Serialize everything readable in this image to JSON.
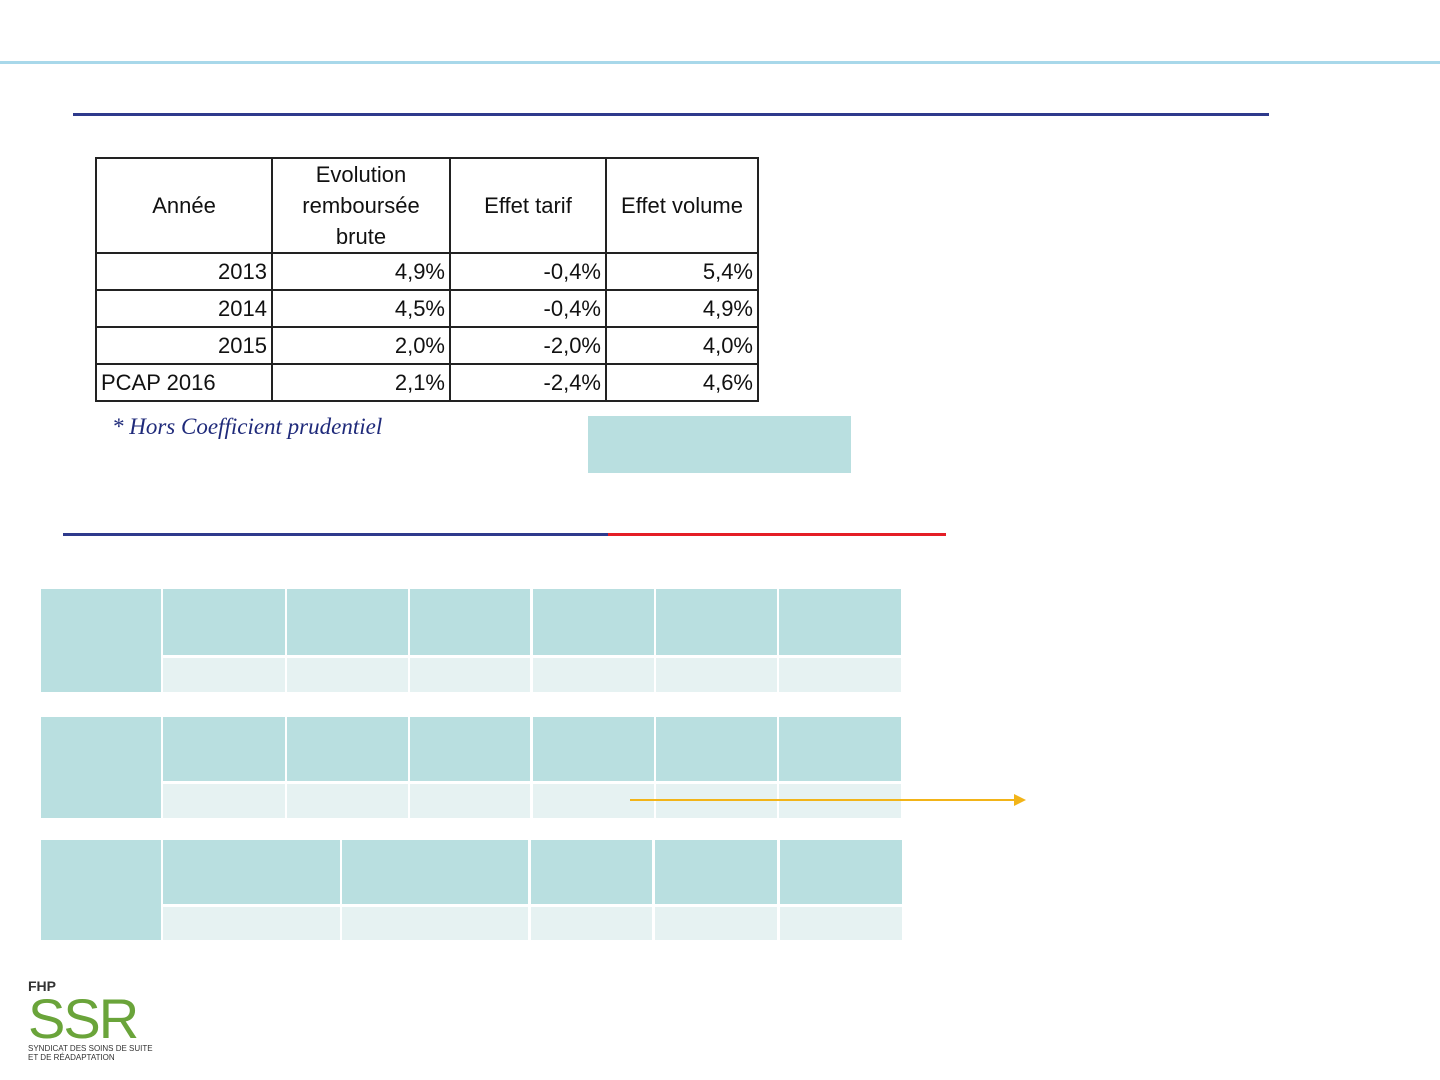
{
  "table": {
    "header": [
      "Année",
      "Evolution remboursée brute",
      "Effet tarif",
      "Effet volume"
    ],
    "rows": [
      [
        "2013",
        "4,9%",
        "-0,4%",
        "5,4%"
      ],
      [
        "2014",
        "4,5%",
        "-0,4%",
        "4,9%"
      ],
      [
        "2015",
        "2,0%",
        "-2,0%",
        "4,0%"
      ],
      [
        "PCAP 2016",
        "2,1%",
        "-2,4%",
        "4,6%"
      ]
    ],
    "footnote": "* Hors Coefficient prudentiel"
  },
  "logo": {
    "brand": "FHP",
    "name": "SSR",
    "line1": "SYNDICAT DES SOINS DE SUITE",
    "line2": "ET DE RÉADAPTATION"
  }
}
